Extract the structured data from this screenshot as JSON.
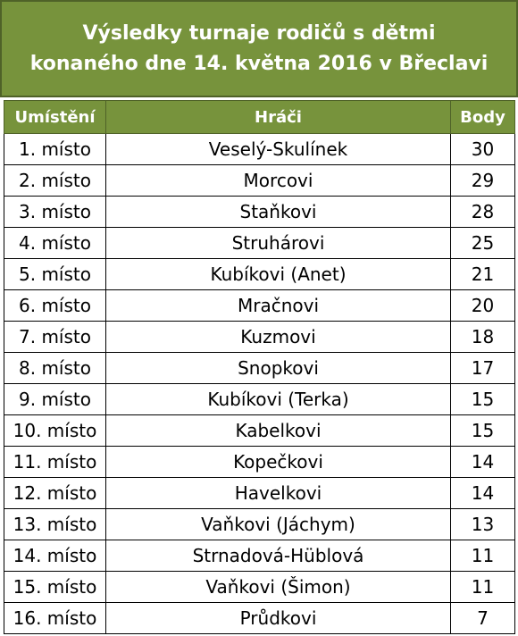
{
  "title": {
    "line1": "Výsledky turnaje rodičů s dětmi",
    "line2": "konaného dne 14. května 2016 v Břeclavi"
  },
  "table": {
    "headers": {
      "rank": "Umístění",
      "players": "Hráči",
      "points": "Body"
    },
    "rows": [
      {
        "rank": "1. místo",
        "players": "Veselý-Skulínek",
        "points": "30"
      },
      {
        "rank": "2. místo",
        "players": "Morcovi",
        "points": "29"
      },
      {
        "rank": "3. místo",
        "players": "Staňkovi",
        "points": "28"
      },
      {
        "rank": "4. místo",
        "players": "Struhárovi",
        "points": "25"
      },
      {
        "rank": "5. místo",
        "players": "Kubíkovi (Anet)",
        "points": "21"
      },
      {
        "rank": "6. místo",
        "players": "Mračnovi",
        "points": "20"
      },
      {
        "rank": "7. místo",
        "players": "Kuzmovi",
        "points": "18"
      },
      {
        "rank": "8. místo",
        "players": "Snopkovi",
        "points": "17"
      },
      {
        "rank": "9. místo",
        "players": "Kubíkovi (Terka)",
        "points": "15"
      },
      {
        "rank": "10. místo",
        "players": "Kabelkovi",
        "points": "15"
      },
      {
        "rank": "11. místo",
        "players": "Kopečkovi",
        "points": "14"
      },
      {
        "rank": "12. místo",
        "players": "Havelkovi",
        "points": "14"
      },
      {
        "rank": "13. místo",
        "players": "Vaňkovi (Jáchym)",
        "points": "13"
      },
      {
        "rank": "14. místo",
        "players": "Strnadová-Hüblová",
        "points": "11"
      },
      {
        "rank": "15. místo",
        "players": "Vaňkovi (Šimon)",
        "points": "11"
      },
      {
        "rank": "16. místo",
        "players": "Průdkovi",
        "points": "7"
      }
    ]
  }
}
